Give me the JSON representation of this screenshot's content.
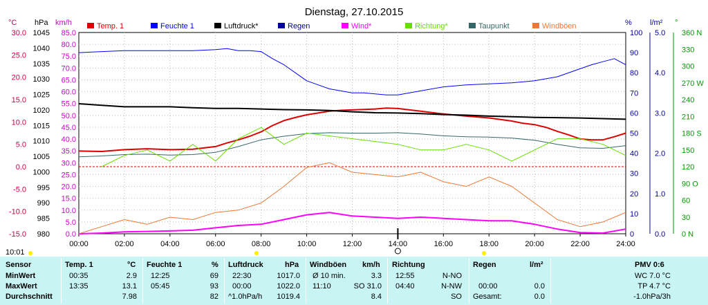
{
  "chart_data": {
    "type": "line",
    "title": "Dienstag, 27.10.2015",
    "x_ticks": [
      "00:00",
      "02:00",
      "04:00",
      "06:00",
      "08:00",
      "10:00",
      "12:00",
      "14:00",
      "16:00",
      "18:00",
      "20:00",
      "22:00",
      "24:00"
    ],
    "axes": [
      {
        "id": "temp",
        "unit": "°C",
        "ticks": [
          "30.0",
          "25.0",
          "20.0",
          "15.0",
          "10.0",
          "5.0",
          "0.0",
          "-5.0",
          "-10.0",
          "-15.0"
        ],
        "color": "#cc0044"
      },
      {
        "id": "press",
        "unit": "hPa",
        "ticks": [
          "1045",
          "1040",
          "1035",
          "1030",
          "1025",
          "1020",
          "1015",
          "1010",
          "1005",
          "1000",
          "995",
          "990",
          "985",
          "980"
        ],
        "color": "#000000"
      },
      {
        "id": "wind",
        "unit": "km/h",
        "ticks": [
          "85.0",
          "80.0",
          "75.0",
          "70.0",
          "65.0",
          "60.0",
          "55.0",
          "50.0",
          "45.0",
          "40.0",
          "35.0",
          "30.0",
          "25.0",
          "20.0",
          "15.0",
          "10.0",
          "5.0",
          "0.0"
        ],
        "color": "#cc00cc"
      },
      {
        "id": "hum",
        "unit": "%",
        "ticks": [
          "100",
          "90",
          "80",
          "70",
          "60",
          "50",
          "40",
          "30",
          "20",
          "10",
          "0"
        ],
        "color": "#000099"
      },
      {
        "id": "rain",
        "unit": "l/m²",
        "ticks": [
          "5.0",
          "4.0",
          "3.0",
          "2.0",
          "1.0",
          "0.0"
        ],
        "color": "#000099"
      },
      {
        "id": "dir",
        "unit": "°",
        "ticks": [
          "360 N",
          "330",
          "300",
          "270 W",
          "240",
          "210",
          "180 S",
          "150",
          "120",
          "90 O",
          "60",
          "30",
          "0 N"
        ],
        "color": "#009900"
      }
    ],
    "legend": [
      {
        "label": "Temp. 1",
        "color": "#dd0000"
      },
      {
        "label": "Feuchte 1",
        "color": "#0000ff"
      },
      {
        "label": "Luftdruck*",
        "color": "#000000"
      },
      {
        "label": "Regen",
        "color": "#000099"
      },
      {
        "label": "Wind*",
        "color": "#ff00ff"
      },
      {
        "label": "Richtung*",
        "color": "#66dd00"
      },
      {
        "label": "Taupunkt",
        "color": "#336666"
      },
      {
        "label": "Windböen",
        "color": "#ee7733"
      }
    ],
    "time_marker": "10:01",
    "series": [
      {
        "name": "Temp. 1",
        "axis": "temp",
        "color": "#dd0000",
        "x": [
          0,
          1,
          2,
          3,
          4,
          5,
          6,
          6.5,
          7,
          7.5,
          8,
          8.5,
          9,
          9.5,
          10,
          10.5,
          11,
          11.5,
          12,
          12.5,
          13,
          13.5,
          14,
          15,
          16,
          17,
          18,
          19,
          19.5,
          20,
          20.5,
          21,
          21.5,
          22,
          22.5,
          23,
          23.5,
          24
        ],
        "y": [
          3.5,
          3.4,
          3.8,
          4.0,
          3.8,
          3.9,
          4.5,
          5.3,
          6.0,
          6.8,
          7.8,
          9.2,
          10.3,
          11.0,
          11.6,
          12.0,
          12.4,
          12.6,
          12.7,
          12.8,
          12.9,
          13.1,
          13.0,
          12.4,
          11.8,
          11.3,
          10.9,
          10.2,
          9.7,
          9.4,
          8.8,
          7.9,
          7.1,
          6.2,
          6.0,
          6.0,
          6.7,
          7.5
        ]
      },
      {
        "name": "Feuchte 1",
        "axis": "hum",
        "color": "#0000ff",
        "x": [
          0,
          1,
          2,
          3,
          4,
          5,
          6,
          6.5,
          7,
          7.5,
          8,
          8.5,
          9,
          9.5,
          10,
          10.5,
          11,
          11.5,
          12,
          12.5,
          13,
          13.5,
          14,
          15,
          16,
          17,
          18,
          19,
          20,
          21,
          22,
          22.5,
          23,
          23.5,
          24
        ],
        "y": [
          90,
          90.5,
          91,
          91,
          91,
          91,
          91.5,
          92,
          91,
          91,
          90.5,
          87,
          84,
          80,
          76,
          74,
          72,
          71,
          70,
          70,
          69.5,
          69,
          69,
          71,
          73,
          74,
          74.5,
          75,
          76,
          78,
          82,
          84,
          85.5,
          87,
          84
        ]
      },
      {
        "name": "Luftdruck*",
        "axis": "press",
        "color": "#000000",
        "x": [
          0,
          1,
          2,
          3,
          4,
          5,
          6,
          7,
          8,
          9,
          10,
          11,
          12,
          13,
          14,
          15,
          16,
          17,
          18,
          19,
          20,
          21,
          22,
          23,
          24
        ],
        "y": [
          1022,
          1021.5,
          1021,
          1021,
          1021,
          1020.7,
          1020.5,
          1020.5,
          1020.3,
          1020.1,
          1020,
          1019.8,
          1019.4,
          1019.1,
          1019,
          1018.8,
          1018.5,
          1018.3,
          1018,
          1017.8,
          1017.6,
          1017.5,
          1017.4,
          1017.2,
          1017
        ]
      },
      {
        "name": "Taupunkt",
        "axis": "temp",
        "color": "#336666",
        "x": [
          0,
          1,
          2,
          3,
          4,
          5,
          6,
          7,
          8,
          9,
          10,
          11,
          12,
          13,
          14,
          15,
          16,
          17,
          18,
          19,
          20,
          21,
          22,
          23,
          24
        ],
        "y": [
          2.2,
          2.4,
          2.7,
          2.8,
          2.6,
          2.7,
          3.2,
          4.5,
          6.0,
          6.8,
          7.4,
          7.6,
          7.5,
          7.5,
          7.6,
          7.3,
          6.9,
          6.7,
          6.6,
          6.4,
          5.9,
          5.0,
          4.2,
          4.1,
          4.7
        ]
      },
      {
        "name": "Wind*",
        "axis": "wind",
        "color": "#ff00ff",
        "x": [
          0,
          1,
          2,
          3,
          4,
          5,
          6,
          7,
          8,
          9,
          10,
          11,
          12,
          13,
          14,
          15,
          16,
          17,
          18,
          19,
          20,
          21,
          22,
          23,
          24
        ],
        "y": [
          0,
          0.3,
          0.8,
          1.0,
          1.2,
          1.5,
          2.5,
          3.5,
          4.0,
          6.0,
          8.0,
          9.0,
          7.5,
          7.0,
          6.5,
          7.0,
          6.5,
          6.0,
          5.5,
          5.5,
          4.0,
          2.0,
          0.5,
          0.3,
          2.0
        ]
      },
      {
        "name": "Windböen",
        "axis": "wind",
        "color": "#ee7733",
        "x": [
          0,
          1,
          2,
          3,
          4,
          5,
          6,
          7,
          8,
          9,
          10,
          11,
          12,
          13,
          14,
          15,
          16,
          17,
          18,
          19,
          20,
          21,
          22,
          23,
          24
        ],
        "y": [
          0,
          3,
          6,
          4,
          7,
          6,
          9,
          10,
          13,
          20,
          28,
          30,
          26,
          25,
          24,
          26,
          22,
          20,
          24,
          20,
          13,
          6,
          3,
          5,
          9
        ]
      },
      {
        "name": "Richtung*",
        "axis": "dir",
        "color": "#66dd00",
        "x": [
          1,
          2,
          3,
          4,
          5,
          6,
          7,
          8,
          9,
          10,
          11,
          12,
          13,
          14,
          15,
          16,
          17,
          18,
          19,
          20,
          21,
          22,
          23,
          24
        ],
        "y": [
          120,
          140,
          150,
          130,
          160,
          130,
          170,
          190,
          160,
          180,
          175,
          170,
          165,
          160,
          150,
          150,
          160,
          150,
          130,
          150,
          170,
          170,
          160,
          140
        ]
      }
    ]
  },
  "table": {
    "headers": {
      "sensor": "Sensor",
      "temp": "Temp. 1",
      "temp_unit": "°C",
      "hum": "Feuchte 1",
      "hum_unit": "%",
      "press": "Luftdruck",
      "press_unit": "hPa",
      "gust": "Windböen",
      "gust_unit": "km/h",
      "dir": "Richtung",
      "rain": "Regen",
      "rain_unit": "l/m²",
      "pmv": "PMV 0:6"
    },
    "rows": [
      {
        "label": "MinWert",
        "temp_time": "00:35",
        "temp_val": "2.9",
        "hum_time": "12:25",
        "hum_val": "69",
        "press_time": "22:30",
        "press_val": "1017.0",
        "gust_time": "Ø 10 min.",
        "gust_val": "3.3",
        "dir_time": "12:55",
        "dir_val": "N-NO",
        "rain_time": "",
        "rain_val": "",
        "pmv": "WC 7.0 °C"
      },
      {
        "label": "MaxWert",
        "temp_time": "13:35",
        "temp_val": "13.1",
        "hum_time": "05:45",
        "hum_val": "93",
        "press_time": "00:00",
        "press_val": "1022.0",
        "gust_time": "11:10",
        "gust_val": "SO 31.0",
        "dir_time": "04:40",
        "dir_val": "N-NW",
        "rain_time": "00:00",
        "rain_val": "0.0",
        "pmv": "TP 4.7 °C"
      },
      {
        "label": "Durchschnitt",
        "temp_time": "",
        "temp_val": "7.98",
        "hum_time": "",
        "hum_val": "82",
        "press_time": "^1.0hPa/h",
        "press_val": "1019.4",
        "gust_time": "",
        "gust_val": "8.4",
        "dir_time": "",
        "dir_val": "SO",
        "rain_time": "Gesamt:",
        "rain_val": "0.0",
        "pmv": "-1.0hPa/3h"
      }
    ]
  }
}
